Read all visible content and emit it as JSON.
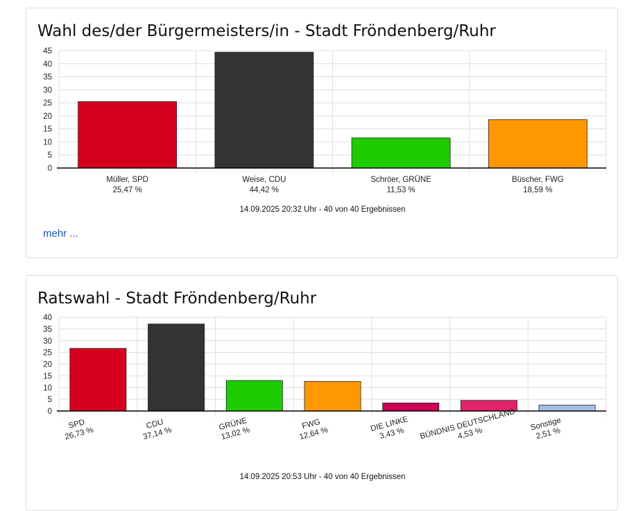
{
  "colors": {
    "SPD": "#d6001c",
    "CDU": "#333333",
    "GRUENE": "#1fcc00",
    "FWG": "#ff9800",
    "LINKE": "#cc0055",
    "BD": "#e0236b",
    "Sonstige": "#a7bde6"
  },
  "panels": [
    {
      "title": "Wahl des/der Bürgermeisters/in - Stadt Fröndenberg/Ruhr",
      "timestamp": "14.09.2025 20:32 Uhr - 40 von 40 Ergebnissen",
      "more_link": "mehr ...",
      "chart_data": {
        "type": "bar",
        "ylim": [
          0,
          45
        ],
        "yticks": [
          0,
          5,
          10,
          15,
          20,
          25,
          30,
          35,
          40,
          45
        ],
        "grid": true,
        "categories": [
          "Müller, SPD",
          "Weise, CDU",
          "Schröer, GRÜNE",
          "Büscher, FWG"
        ],
        "value_labels": [
          "25,47 %",
          "44,42 %",
          "11,53 %",
          "18,59 %"
        ],
        "values": [
          25.47,
          44.42,
          11.53,
          18.59
        ],
        "bar_colors": [
          "#d6001c",
          "#333333",
          "#1fcc00",
          "#ff9800"
        ]
      }
    },
    {
      "title": "Ratswahl - Stadt Fröndenberg/Ruhr",
      "timestamp": "14.09.2025 20:53 Uhr - 40 von 40 Ergebnissen",
      "more_link": "",
      "chart_data": {
        "type": "bar",
        "ylim": [
          0,
          40
        ],
        "yticks": [
          0,
          5,
          10,
          15,
          20,
          25,
          30,
          35,
          40
        ],
        "grid": true,
        "categories": [
          "SPD",
          "CDU",
          "GRÜNE",
          "FWG",
          "DIE LINKE",
          "BÜNDNIS DEUTSCHLAND",
          "Sonstige"
        ],
        "value_labels": [
          "26,73 %",
          "37,14 %",
          "13,02 %",
          "12,64 %",
          "3,43 %",
          "4,53 %",
          "2,51 %"
        ],
        "values": [
          26.73,
          37.14,
          13.02,
          12.64,
          3.43,
          4.53,
          2.51
        ],
        "bar_colors": [
          "#d6001c",
          "#333333",
          "#1fcc00",
          "#ff9800",
          "#cc0055",
          "#e0236b",
          "#a7bde6"
        ]
      }
    }
  ]
}
